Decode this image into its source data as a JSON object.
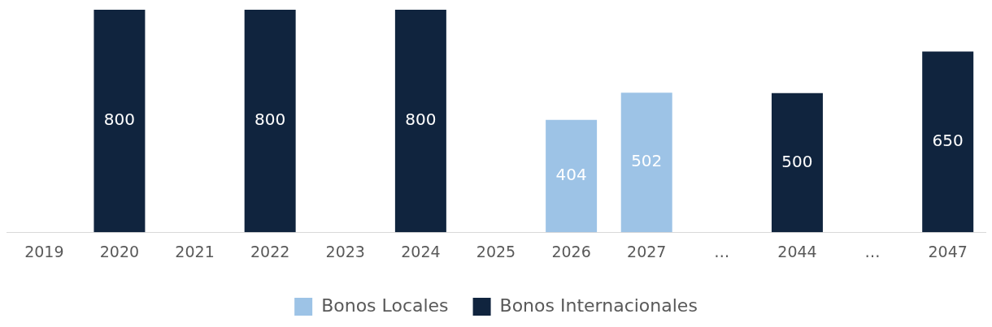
{
  "chart_data": {
    "type": "bar",
    "categories": [
      "2019",
      "2020",
      "2021",
      "2022",
      "2023",
      "2024",
      "2025",
      "2026",
      "2027",
      "…",
      "2044",
      "…",
      "2047"
    ],
    "series": [
      {
        "name": "Bonos Locales",
        "color": "#9dc3e6",
        "values": [
          null,
          null,
          null,
          null,
          null,
          null,
          null,
          404,
          502,
          null,
          null,
          null,
          null
        ]
      },
      {
        "name": "Bonos Internacionales",
        "color": "#10243e",
        "values": [
          null,
          800,
          null,
          800,
          null,
          800,
          null,
          null,
          null,
          null,
          500,
          null,
          650
        ]
      }
    ],
    "stacked": true,
    "data_labels": true,
    "legend": "bottom",
    "grid": false
  }
}
